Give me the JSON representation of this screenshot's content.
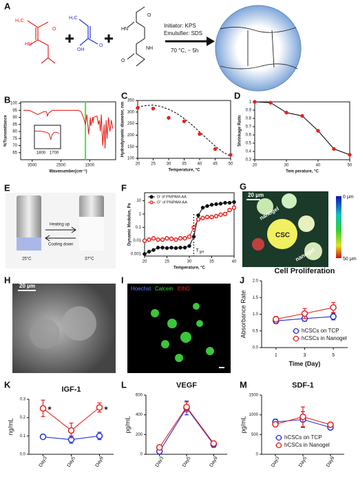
{
  "panel_labels": [
    "A",
    "B",
    "C",
    "D",
    "E",
    "F",
    "G",
    "H",
    "I",
    "J",
    "K",
    "L",
    "M"
  ],
  "scheme": {
    "initiator": "Initiator: KPS",
    "emulsifier": "Emulsifier: SDS",
    "conditions": "70 °C, ~ 5h",
    "atoms": [
      "H₂C",
      "O",
      "HN",
      "H₂C",
      "O",
      "OH",
      "O",
      "HN",
      "NH",
      "O"
    ]
  },
  "photos": {
    "heating": "Heating up",
    "cooling": "Cooling down",
    "vial1": "25°C",
    "vial2": "37°C",
    "g_scale": "20 μm",
    "g_top": "0 μm",
    "g_bottom": "50 μm",
    "g_nanogel1": "nanogel",
    "g_csc": "CSC",
    "g_nanogel2": "nanogel",
    "h_scale": "20 μm",
    "i_stain1": "Hoechst",
    "i_stain2": "Calcein",
    "i_stain3": "EthD"
  },
  "chart_data": [
    {
      "type": "line",
      "xlabel": "Wavenumber(cm⁻¹)",
      "ylabel": "%Transmittance",
      "xlim": [
        3900,
        600
      ],
      "ylim": [
        60,
        101
      ],
      "xticks": [
        3500,
        2500,
        1500
      ],
      "yticks": [
        65,
        70,
        75,
        80,
        85,
        90,
        95,
        100
      ],
      "frame": true,
      "marker_line": {
        "value": 1650,
        "color": "#3ee83e"
      },
      "x": [
        3800,
        3600,
        3400,
        3300,
        3100,
        3000,
        2970,
        2930,
        2800,
        2500,
        2200,
        2000,
        1900,
        1800,
        1720,
        1650,
        1600,
        1540,
        1480,
        1460,
        1400,
        1380,
        1370,
        1250,
        1200,
        1170,
        1130,
        1100,
        1050,
        1000,
        970,
        930,
        900,
        850,
        800,
        750,
        700
      ],
      "series": [
        {
          "color": "#e8211d",
          "marker": "none",
          "values": [
            95,
            95,
            93,
            92,
            94,
            94,
            91,
            93,
            95,
            95,
            95,
            95,
            95,
            94,
            90,
            85,
            92,
            78,
            90,
            84,
            90,
            86,
            90,
            91,
            85,
            88,
            80,
            92,
            70,
            85,
            68,
            88,
            75,
            90,
            80,
            88,
            82
          ]
        }
      ],
      "inset": {
        "xlim": [
          1850,
          1650
        ],
        "xticks": [
          1800,
          1700
        ],
        "ylim": [
          80,
          100
        ],
        "x": [
          1850,
          1800,
          1760,
          1740,
          1725,
          1715,
          1700,
          1680,
          1660
        ],
        "values": [
          95,
          95,
          94,
          93,
          88,
          92,
          94,
          94,
          93
        ]
      }
    },
    {
      "type": "scatter",
      "xlabel": "Temperature, °C",
      "ylabel": "Hydrodynamic diameter, nm",
      "xlim": [
        20,
        50
      ],
      "ylim": [
        100,
        350
      ],
      "xticks": [
        20,
        25,
        30,
        35,
        40,
        45,
        50
      ],
      "yticks": [
        100,
        150,
        200,
        250,
        300,
        350
      ],
      "frame": true,
      "series": [
        {
          "color": "#111111",
          "marker": "none",
          "dash": true,
          "x": [
            20,
            22.5,
            25,
            27.5,
            30,
            32.5,
            35,
            37.5,
            40,
            42.5,
            45,
            47.5,
            50
          ],
          "values": [
            322,
            328,
            330,
            324,
            312,
            295,
            272,
            245,
            214,
            183,
            153,
            127,
            108
          ]
        },
        {
          "color": "#e8211d",
          "marker": "filled",
          "line": false,
          "x": [
            20,
            25,
            30,
            35,
            40,
            45,
            50
          ],
          "values": [
            318,
            315,
            275,
            260,
            205,
            140,
            115
          ]
        }
      ]
    },
    {
      "type": "line",
      "xlabel": "Tem perature, °C",
      "ylabel": "Shrinkage Ratio",
      "xlim": [
        20,
        50
      ],
      "ylim": [
        0.3,
        1
      ],
      "xticks": [
        20,
        30,
        40,
        50
      ],
      "yticks": [
        0.3,
        0.4,
        0.5,
        0.6,
        0.7,
        0.8,
        0.9,
        1
      ],
      "frame": true,
      "series": [
        {
          "color": "#111111",
          "marker": "filled",
          "marker_color": "#e8211d",
          "x": [
            20,
            25,
            30,
            35,
            40,
            45,
            50
          ],
          "values": [
            1.0,
            0.99,
            0.87,
            0.83,
            0.65,
            0.43,
            0.36
          ]
        }
      ]
    },
    {
      "type": "line",
      "xlabel": "Temperature, °C",
      "ylabel": "Dynamic Modulus, Pa",
      "xlim": [
        20,
        40
      ],
      "ylim": [
        0.0007,
        40
      ],
      "log_y": true,
      "xticks": [
        20,
        25,
        30,
        35,
        40
      ],
      "yticks": [
        0.001,
        0.01,
        0.1,
        1,
        10
      ],
      "legend": "upper-left",
      "frame": true,
      "tgel": {
        "text": "T",
        "subscript": "gel",
        "x": 31
      },
      "x": [
        20,
        21,
        22,
        23,
        24,
        25,
        26,
        27,
        28,
        29,
        30,
        31,
        32,
        33,
        34,
        35,
        36,
        37,
        38,
        39,
        40
      ],
      "series": [
        {
          "name": "G' of PNIPAM-AA",
          "color": "#111111",
          "marker": "filled",
          "values": [
            0.001,
            0.0015,
            0.002,
            0.003,
            0.003,
            0.0028,
            0.003,
            0.0028,
            0.003,
            0.003,
            0.004,
            0.02,
            0.8,
            3,
            4,
            5,
            5.5,
            6,
            7,
            7,
            8
          ]
        },
        {
          "name": "G'' of PNIPAM-AA",
          "color": "#e8211d",
          "marker": "open",
          "values": [
            0.01,
            0.012,
            0.015,
            0.012,
            0.012,
            0.015,
            0.014,
            0.012,
            0.015,
            0.015,
            0.02,
            0.1,
            0.4,
            0.5,
            0.6,
            0.6,
            0.7,
            0.9,
            1,
            2,
            3
          ]
        }
      ]
    },
    {
      "type": "line",
      "title": "Cell Proliferation",
      "xlabel": "Time (Day)",
      "ylabel": "Absorbance Rate",
      "categories": [
        "1",
        "3",
        "5"
      ],
      "ylim": [
        0,
        2
      ],
      "yticks": [
        {
          "value": 0,
          "label": "0.0"
        },
        0.5,
        {
          "value": 1,
          "label": "1.0"
        },
        1.5,
        {
          "value": 2,
          "label": "2.0"
        }
      ],
      "legend": "lower-right",
      "series": [
        {
          "name": "hCSCs on TCP",
          "color": "#2231d6",
          "marker": "open",
          "values": [
            0.8,
            0.87,
            0.93
          ],
          "errors": [
            0.08,
            0.08,
            0.1
          ]
        },
        {
          "name": "hCSCs in Nanogel",
          "color": "#e8211d",
          "marker": "open",
          "values": [
            0.85,
            1.02,
            1.2
          ],
          "errors": [
            0.08,
            0.15,
            0.15
          ]
        }
      ]
    },
    {
      "type": "line",
      "title": "IGF-1",
      "ylabel": "ng/mL",
      "categories": [
        "Day3",
        "Day5",
        "Day9"
      ],
      "ylim": [
        0,
        0.3
      ],
      "yticks": [
        {
          "value": 0,
          "label": "0.0"
        },
        0.1,
        0.2,
        0.3
      ],
      "annotations": [
        {
          "text": "*",
          "category": 0
        },
        {
          "text": "*",
          "category": 2
        }
      ],
      "series": [
        {
          "name": "hCSCs on TCP",
          "color": "#2231d6",
          "marker": "open",
          "values": [
            0.095,
            0.08,
            0.1
          ],
          "errors": [
            0.005,
            0.02,
            0.02
          ]
        },
        {
          "name": "hCSCs in Nanogel",
          "color": "#e8211d",
          "marker": "open",
          "values": [
            0.25,
            0.13,
            0.255
          ],
          "errors": [
            0.045,
            0.04,
            0.025
          ]
        }
      ],
      "legend_hidden": true
    },
    {
      "type": "line",
      "title": "VEGF",
      "ylabel": "pg/mL",
      "categories": [
        "Day3",
        "Day5",
        "Day9"
      ],
      "ylim": [
        0,
        600
      ],
      "yticks": [
        0,
        200,
        400,
        600
      ],
      "legend_hidden": true,
      "series": [
        {
          "name": "hCSCs on TCP",
          "color": "#2231d6",
          "marker": "open",
          "values": [
            30,
            470,
            100
          ],
          "errors": [
            10,
            70,
            30
          ]
        },
        {
          "name": "hCSCs in Nanogel",
          "color": "#e8211d",
          "marker": "open",
          "values": [
            70,
            480,
            110
          ],
          "errors": [
            10,
            50,
            20
          ]
        }
      ]
    },
    {
      "type": "line",
      "title": "SDF-1",
      "ylabel": "pg/mL",
      "categories": [
        "Day3",
        "Day5",
        "Day9"
      ],
      "ylim": [
        0,
        1500
      ],
      "yticks": [
        0,
        500,
        1000,
        1500
      ],
      "legend": "lower-center",
      "series": [
        {
          "name": "hCSCs on TCP",
          "color": "#2231d6",
          "marker": "open",
          "values": [
            820,
            880,
            680
          ],
          "errors": [
            70,
            200,
            40
          ]
        },
        {
          "name": "hCSCs in Nanogel",
          "color": "#e8211d",
          "marker": "open",
          "values": [
            760,
            950,
            750
          ],
          "errors": [
            60,
            250,
            40
          ]
        }
      ]
    }
  ]
}
